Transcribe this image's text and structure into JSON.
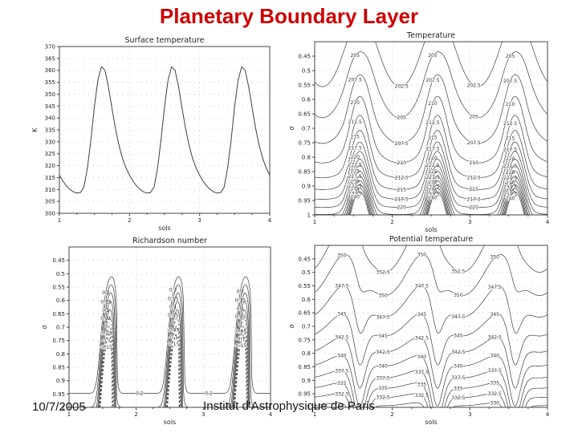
{
  "slide": {
    "title": "Planetary Boundary Layer",
    "title_color": "#cc0000",
    "footer_date": "10/7/2005",
    "footer_credit": "Institut d'Astrophysique de Paris"
  },
  "chart_data": [
    {
      "id": "surface-temperature",
      "type": "line",
      "title": "Surface temperature",
      "xlabel": "sols",
      "ylabel": "K",
      "xlim": [
        1,
        4
      ],
      "ylim": [
        300,
        370
      ],
      "xticks": [
        1,
        2,
        3,
        4
      ],
      "ytick_step": 5,
      "grid": "dotted",
      "line_color": "#3f3f3f",
      "x": [
        1.0,
        1.05,
        1.1,
        1.15,
        1.2,
        1.25,
        1.3,
        1.35,
        1.4,
        1.45,
        1.5,
        1.55,
        1.6,
        1.65,
        1.7,
        1.75,
        1.8,
        1.85,
        1.9,
        1.95,
        2.0,
        2.05,
        2.1,
        2.15,
        2.2,
        2.25,
        2.3,
        2.35,
        2.4,
        2.45,
        2.5,
        2.55,
        2.6,
        2.65,
        2.7,
        2.75,
        2.8,
        2.85,
        2.9,
        2.95,
        3.0,
        3.05,
        3.1,
        3.15,
        3.2,
        3.25,
        3.3,
        3.35,
        3.4,
        3.45,
        3.5,
        3.55,
        3.6,
        3.65,
        3.7,
        3.75,
        3.8,
        3.85,
        3.9,
        3.95,
        4.0
      ],
      "y": [
        316,
        313.5,
        311.5,
        310,
        309,
        308.5,
        308.7,
        311,
        319,
        331,
        345,
        356,
        361.5,
        360,
        353,
        344,
        335.5,
        328.5,
        323,
        319,
        316,
        313.5,
        311.5,
        310,
        309,
        308.5,
        308.7,
        311,
        319,
        331,
        345,
        356,
        361.5,
        360,
        353,
        344,
        335.5,
        328.5,
        323,
        319,
        316,
        313.5,
        311.5,
        310,
        309,
        308.5,
        308.7,
        311,
        319,
        331,
        345,
        356,
        361.5,
        360,
        353,
        344,
        335.5,
        328.5,
        323,
        319,
        316
      ]
    },
    {
      "id": "temperature",
      "type": "contour",
      "title": "Temperature",
      "xlabel": "sols",
      "ylabel": "σ",
      "units": "K",
      "xlim": [
        1,
        4
      ],
      "ylim": [
        0.4,
        1.0
      ],
      "y_increases_downward": true,
      "xticks": [
        1,
        2,
        3,
        4
      ],
      "yticks": [
        0.45,
        0.5,
        0.55,
        0.6,
        0.65,
        0.7,
        0.75,
        0.8,
        0.85,
        0.9,
        0.95,
        1
      ],
      "levels": [
        202.5,
        205,
        207.5,
        210,
        212.5,
        215,
        217.5,
        220,
        222.5,
        225,
        227.5,
        230,
        232.5,
        235,
        237.5,
        240
      ],
      "description": "Air temperature (K) vs sigma level and time; wavy isotherms aloft, dense near-surface inversion at night and warm convective plumes each afternoon (peaks near sols 1.6, 2.6, 3.6).",
      "dashed_below": null,
      "model": {
        "name": "temperature",
        "labelX": [
          1.52,
          2.52,
          3.52,
          2.12,
          3.05
        ]
      }
    },
    {
      "id": "richardson-number",
      "type": "contour",
      "title": "Richardson number",
      "xlabel": "sols",
      "ylabel": "σ",
      "units": "",
      "xlim": [
        1,
        4
      ],
      "ylim": [
        0.4,
        1.0
      ],
      "y_increases_downward": true,
      "xticks": [
        1,
        2,
        3,
        4
      ],
      "yticks": [
        0.45,
        0.5,
        0.55,
        0.6,
        0.65,
        0.7,
        0.75,
        0.8,
        0.85,
        0.9,
        0.95,
        1
      ],
      "levels": [
        0.2,
        0.15,
        0.1,
        0.05,
        0,
        -0.05,
        -0.1,
        -0.15
      ],
      "description": "Richardson number; nested plumes of low and negative Ri (dashed contours) rising to sigma~0.5 during each afternoon convective period.",
      "dashed_below": 0,
      "model": {
        "name": "richardson",
        "labelX": [
          1.55,
          2.55,
          2.05,
          3.08,
          3.55
        ]
      }
    },
    {
      "id": "potential-temperature",
      "type": "contour",
      "title": "Potential temperature",
      "xlabel": "sols",
      "ylabel": "σ",
      "units": "K",
      "xlim": [
        1,
        4
      ],
      "ylim": [
        0.4,
        1.0
      ],
      "y_increases_downward": true,
      "xticks": [
        1,
        2,
        3,
        4
      ],
      "yticks": [
        0.45,
        0.5,
        0.55,
        0.6,
        0.65,
        0.7,
        0.75,
        0.8,
        0.85,
        0.9,
        0.95,
        1
      ],
      "levels": [
        327.5,
        330,
        332.5,
        335,
        337.5,
        340,
        342.5,
        345,
        347.5,
        350,
        352.5
      ],
      "description": "Potential temperature (K); stable stratification at night with isentropes plunging to the surface in well-mixed daytime convective layers.",
      "dashed_below": null,
      "model": {
        "name": "theta",
        "labelX": [
          1.35,
          2.38,
          3.32,
          1.88,
          2.85
        ]
      }
    }
  ]
}
